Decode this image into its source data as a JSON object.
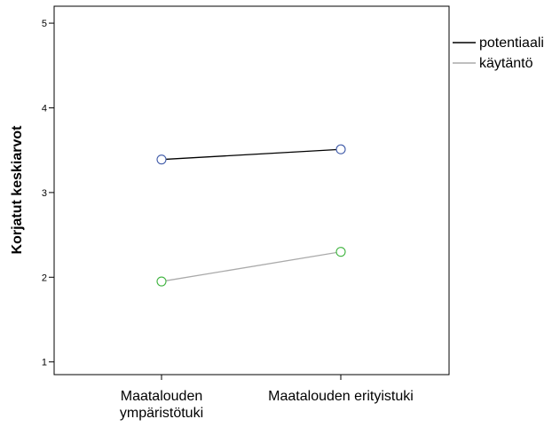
{
  "chart_data": {
    "type": "line",
    "categories": [
      "Maatalouden\nympäristötuki",
      "Maatalouden erityistuki"
    ],
    "series": [
      {
        "name": "potentiaali",
        "values": [
          3.39,
          3.51
        ],
        "line_color": "#000000",
        "marker_color": "#3f5aa8"
      },
      {
        "name": "käytäntö",
        "values": [
          1.95,
          2.3
        ],
        "line_color": "#aaaaaa",
        "marker_color": "#3db33d"
      }
    ],
    "ylabel": "Korjatut keskiarvot",
    "xlabel": "",
    "ylim": [
      0.85,
      5.2
    ],
    "yticks": [
      1,
      2,
      3,
      4,
      5
    ],
    "marker": "open-circle",
    "grid": false,
    "legend_position": "top-right"
  }
}
